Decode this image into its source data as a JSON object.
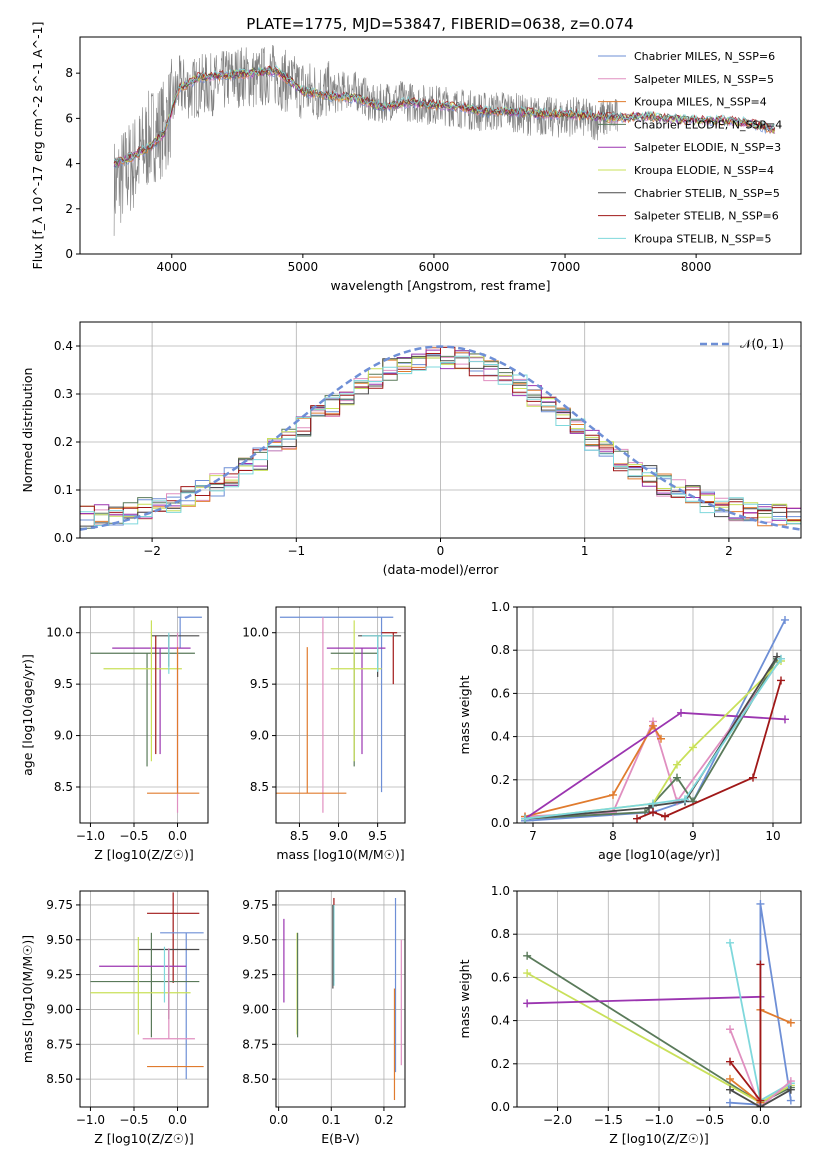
{
  "page": {
    "title": "PLATE=1775, MJD=53847, FIBERID=0638, z=0.074"
  },
  "colors": {
    "blue": "#6e8fd6",
    "pink": "#e08fc0",
    "orange": "#e07b2e",
    "darkgreen": "#5a7a5a",
    "purple": "#9b35b0",
    "yellowgreen": "#c9e05a",
    "darkgray": "#4a4a4a",
    "darkred": "#a01818",
    "cyan": "#7fd8dc",
    "gray": "#808080"
  },
  "chart_data": [
    {
      "id": "spectrum",
      "type": "line",
      "xlabel": "wavelength [Angstrom, rest frame]",
      "ylabel": "Flux [f_λ 10^-17 erg cm^-2 s^-1 A^-1]",
      "xlim": [
        3300,
        8800
      ],
      "ylim": [
        0,
        9.6
      ],
      "xticks": [
        4000,
        5000,
        6000,
        7000,
        8000
      ],
      "yticks": [
        0,
        2,
        4,
        6,
        8
      ],
      "grid": false,
      "legend_position": "top-right",
      "legend": [
        {
          "label": "Chabrier MILES, N_SSP=6",
          "color": "#6e8fd6"
        },
        {
          "label": "Salpeter MILES, N_SSP=5",
          "color": "#e08fc0"
        },
        {
          "label": "Kroupa MILES, N_SSP=4",
          "color": "#e07b2e"
        },
        {
          "label": "Chabrier ELODIE, N_SSP=4",
          "color": "#5a7a5a"
        },
        {
          "label": "Salpeter ELODIE, N_SSP=3",
          "color": "#9b35b0"
        },
        {
          "label": "Kroupa ELODIE, N_SSP=4",
          "color": "#c9e05a"
        },
        {
          "label": "Chabrier STELIB, N_SSP=5",
          "color": "#4a4a4a"
        },
        {
          "label": "Salpeter STELIB, N_SSP=6",
          "color": "#a01818"
        },
        {
          "label": "Kroupa STELIB, N_SSP=5",
          "color": "#7fd8dc"
        }
      ],
      "data_series": {
        "name": "data",
        "x": [
          3560,
          3650,
          3750,
          3850,
          3950,
          4050,
          4150,
          4250,
          4350,
          4450,
          4550,
          4650,
          4750,
          4850,
          4950,
          5050,
          5150,
          5250,
          5350,
          5450,
          5550,
          5650,
          5750,
          5850,
          5950,
          6050,
          6150,
          6250,
          6350,
          6450,
          6550,
          6650,
          6750,
          6850,
          6950,
          7050,
          7150,
          7250,
          7350,
          7450,
          7550,
          7650,
          7750,
          7850,
          7950,
          8050,
          8150,
          8250,
          8350,
          8450
        ],
        "y": [
          3.0,
          3.6,
          4.3,
          5.3,
          5.6,
          7.4,
          7.3,
          7.5,
          7.5,
          7.8,
          7.9,
          7.7,
          8.0,
          7.7,
          7.4,
          7.2,
          7.2,
          7.1,
          7.3,
          7.1,
          6.5,
          6.8,
          6.8,
          6.7,
          6.6,
          6.6,
          6.5,
          6.4,
          6.3,
          6.3,
          6.4,
          6.2,
          6.1,
          6.1,
          6.0,
          6.1,
          6.0,
          5.9,
          6.1,
          5.9,
          6.0,
          5.9,
          5.8,
          5.5,
          5.5,
          5.4,
          5.5,
          5.3,
          5.3,
          5.0
        ]
      },
      "model_series": {
        "x": [
          3560,
          3700,
          3850,
          3950,
          4050,
          4200,
          4400,
          4600,
          4800,
          5000,
          5200,
          5400,
          5600,
          5800,
          6000,
          6200,
          6400,
          6600,
          6800,
          7000,
          7200,
          7400,
          7600,
          7800,
          8000,
          8200,
          8400,
          8600
        ],
        "y": [
          4.0,
          4.3,
          4.8,
          5.4,
          7.3,
          7.8,
          7.9,
          8.0,
          8.1,
          7.2,
          7.0,
          6.9,
          6.5,
          6.7,
          6.6,
          6.5,
          6.3,
          6.3,
          6.2,
          6.2,
          6.1,
          6.0,
          6.1,
          6.0,
          5.9,
          5.9,
          5.8,
          5.5
        ]
      }
    },
    {
      "id": "residuals",
      "type": "line",
      "xlabel": "(data-model)/error",
      "ylabel": "Normed distribution",
      "xlim": [
        -2.5,
        2.5
      ],
      "ylim": [
        0,
        0.45
      ],
      "xticks": [
        -2,
        -1,
        0,
        1,
        2
      ],
      "yticks": [
        0.0,
        0.1,
        0.2,
        0.3,
        0.4
      ],
      "grid": true,
      "legend_position": "top-right",
      "legend_label": "𝒩(0, 1)",
      "note": "step histograms per model plus dashed standard normal"
    },
    {
      "id": "age-vs-Z",
      "type": "scatter",
      "xlabel": "Z [log10(Z/Z☉)]",
      "ylabel": "age [log10(age/yr)]",
      "xlim": [
        -1.12,
        0.35
      ],
      "ylim": [
        8.15,
        10.25
      ],
      "xticks": [
        -1.0,
        -0.5,
        0.0
      ],
      "yticks": [
        8.5,
        9.0,
        9.5,
        10.0
      ],
      "grid": true,
      "errorbars": [
        {
          "color": "#6e8fd6",
          "x": 0.03,
          "xerr": [
            0.03,
            0.25
          ],
          "y": 10.15,
          "yerr": [
            0.3,
            0.0
          ]
        },
        {
          "color": "#4a4a4a",
          "x": -0.1,
          "xerr": [
            0.2,
            0.35
          ],
          "y": 9.97,
          "yerr": [
            0.3,
            0.0
          ]
        },
        {
          "color": "#5a7a5a",
          "x": -0.35,
          "xerr": [
            0.65,
            0.55
          ],
          "y": 9.8,
          "yerr": [
            1.1,
            0.0
          ]
        },
        {
          "color": "#9b35b0",
          "x": -0.2,
          "xerr": [
            0.55,
            0.35
          ],
          "y": 9.85,
          "yerr": [
            1.03,
            0.0
          ]
        },
        {
          "color": "#c9e05a",
          "x": -0.3,
          "xerr": [
            0.55,
            0.35
          ],
          "y": 9.65,
          "yerr": [
            0.9,
            0.47
          ]
        },
        {
          "color": "#e08fc0",
          "x": 0.0,
          "xerr": [
            0.0,
            0.0
          ],
          "y": 9.6,
          "yerr": [
            1.35,
            0.4
          ]
        },
        {
          "color": "#e07b2e",
          "x": 0.0,
          "xerr": [
            0.35,
            0.25
          ],
          "y": 8.44,
          "yerr": [
            0.0,
            1.42
          ]
        },
        {
          "color": "#a01818",
          "x": -0.25,
          "xerr": [
            0.0,
            0.0
          ],
          "y": 9.5,
          "yerr": [
            0.68,
            0.47
          ]
        },
        {
          "color": "#7fd8dc",
          "x": -0.1,
          "xerr": [
            0.0,
            0.0
          ],
          "y": 9.9,
          "yerr": [
            0.3,
            0.1
          ]
        }
      ]
    },
    {
      "id": "age-vs-mass",
      "type": "scatter",
      "xlabel": "mass [log10(M/M☉)]",
      "ylabel": "",
      "xlim": [
        8.2,
        9.85
      ],
      "ylim": [
        8.15,
        10.25
      ],
      "xticks": [
        8.5,
        9.0,
        9.5
      ],
      "yticks": [
        8.5,
        9.0,
        9.5,
        10.0
      ],
      "grid": true,
      "errorbars": [
        {
          "color": "#6e8fd6",
          "x": 9.55,
          "xerr": [
            1.3,
            0.15
          ],
          "y": 10.15,
          "yerr": [
            1.7,
            0.0
          ]
        },
        {
          "color": "#4a4a4a",
          "x": 9.5,
          "xerr": [
            0.25,
            0.3
          ],
          "y": 9.97,
          "yerr": [
            0.4,
            0.0
          ]
        },
        {
          "color": "#5a7a5a",
          "x": 9.2,
          "xerr": [
            0.3,
            0.3
          ],
          "y": 9.8,
          "yerr": [
            1.1,
            0.0
          ]
        },
        {
          "color": "#9b35b0",
          "x": 9.3,
          "xerr": [
            0.45,
            0.3
          ],
          "y": 9.85,
          "yerr": [
            1.03,
            0.0
          ]
        },
        {
          "color": "#c9e05a",
          "x": 9.2,
          "xerr": [
            0.3,
            0.35
          ],
          "y": 9.65,
          "yerr": [
            0.9,
            0.47
          ]
        },
        {
          "color": "#e08fc0",
          "x": 8.8,
          "xerr": [
            0.0,
            0.0
          ],
          "y": 9.6,
          "yerr": [
            1.35,
            0.55
          ]
        },
        {
          "color": "#e07b2e",
          "x": 8.6,
          "xerr": [
            0.4,
            0.5
          ],
          "y": 8.44,
          "yerr": [
            0.0,
            1.42
          ]
        },
        {
          "color": "#a01818",
          "x": 9.7,
          "xerr": [
            0.15,
            0.05
          ],
          "y": 10.0,
          "yerr": [
            0.5,
            0.0
          ]
        },
        {
          "color": "#7fd8dc",
          "x": 9.5,
          "xerr": [
            0.2,
            0.2
          ],
          "y": 9.97,
          "yerr": [
            0.35,
            0.0
          ]
        }
      ]
    },
    {
      "id": "massweight-vs-age",
      "type": "line",
      "xlabel": "age [log10(age/yr)]",
      "ylabel": "mass weight",
      "xlim": [
        6.8,
        10.35
      ],
      "ylim": [
        0,
        1.0
      ],
      "xticks": [
        7,
        8,
        9,
        10
      ],
      "yticks": [
        0.0,
        0.2,
        0.4,
        0.6,
        0.8,
        1.0
      ],
      "grid": true,
      "series": [
        {
          "color": "#6e8fd6",
          "x": [
            6.9,
            8.5,
            8.9,
            9.0,
            10.15
          ],
          "y": [
            0.01,
            0.05,
            0.1,
            0.1,
            0.94
          ]
        },
        {
          "color": "#e08fc0",
          "x": [
            6.9,
            8.0,
            8.5,
            8.8,
            10.1
          ],
          "y": [
            0.03,
            0.05,
            0.47,
            0.1,
            0.76
          ]
        },
        {
          "color": "#e07b2e",
          "x": [
            6.9,
            8.0,
            8.5,
            8.6
          ],
          "y": [
            0.03,
            0.13,
            0.45,
            0.39
          ]
        },
        {
          "color": "#5a7a5a",
          "x": [
            6.9,
            8.4,
            8.8,
            9.0,
            10.05
          ],
          "y": [
            0.02,
            0.05,
            0.21,
            0.1,
            0.76
          ]
        },
        {
          "color": "#9b35b0",
          "x": [
            6.9,
            8.85,
            10.15
          ],
          "y": [
            0.02,
            0.51,
            0.48
          ]
        },
        {
          "color": "#c9e05a",
          "x": [
            6.9,
            8.5,
            8.8,
            9.0,
            10.1
          ],
          "y": [
            0.02,
            0.09,
            0.27,
            0.35,
            0.75
          ]
        },
        {
          "color": "#4a4a4a",
          "x": [
            6.9,
            8.45,
            8.5,
            8.9,
            10.05
          ],
          "y": [
            0.02,
            0.07,
            0.08,
            0.1,
            0.77
          ]
        },
        {
          "color": "#a01818",
          "x": [
            8.3,
            8.5,
            8.65,
            9.75,
            10.1
          ],
          "y": [
            0.02,
            0.05,
            0.03,
            0.21,
            0.66
          ]
        },
        {
          "color": "#7fd8dc",
          "x": [
            6.9,
            8.5,
            8.9,
            10.1
          ],
          "y": [
            0.02,
            0.09,
            0.11,
            0.76
          ]
        }
      ]
    },
    {
      "id": "mass-vs-Z",
      "type": "scatter",
      "xlabel": "Z [log10(Z/Z☉)]",
      "ylabel": "mass [log10(M/M☉)]",
      "xlim": [
        -1.12,
        0.35
      ],
      "ylim": [
        8.3,
        9.85
      ],
      "xticks": [
        -1.0,
        -0.5,
        0.0
      ],
      "yticks": [
        8.5,
        8.75,
        9.0,
        9.25,
        9.5,
        9.75
      ],
      "grid": true,
      "errorbars": [
        {
          "color": "#a01818",
          "x": -0.05,
          "xerr": [
            0.3,
            0.3
          ],
          "y": 9.69,
          "yerr": [
            0.5,
            0.15
          ]
        },
        {
          "color": "#6e8fd6",
          "x": 0.1,
          "xerr": [
            0.3,
            0.2
          ],
          "y": 9.55,
          "yerr": [
            1.05,
            0.0
          ]
        },
        {
          "color": "#4a4a4a",
          "x": -0.1,
          "xerr": [
            0.35,
            0.35
          ],
          "y": 9.43,
          "yerr": [
            0.5,
            0.0
          ]
        },
        {
          "color": "#5a7a5a",
          "x": -0.3,
          "xerr": [
            0.7,
            0.55
          ],
          "y": 9.2,
          "yerr": [
            0.4,
            0.35
          ]
        },
        {
          "color": "#9b35b0",
          "x": -0.35,
          "xerr": [
            0.55,
            0.45
          ],
          "y": 9.31,
          "yerr": [
            0.0,
            0.0
          ]
        },
        {
          "color": "#c9e05a",
          "x": -0.45,
          "xerr": [
            0.55,
            0.6
          ],
          "y": 9.12,
          "yerr": [
            0.3,
            0.4
          ]
        },
        {
          "color": "#e08fc0",
          "x": -0.1,
          "xerr": [
            0.3,
            0.3
          ],
          "y": 8.79,
          "yerr": [
            0.0,
            0.65
          ]
        },
        {
          "color": "#e07b2e",
          "x": 0.0,
          "xerr": [
            0.35,
            0.3
          ],
          "y": 8.59,
          "yerr": [
            0.0,
            0.0
          ]
        },
        {
          "color": "#7fd8dc",
          "x": -0.15,
          "xerr": [
            0.0,
            0.0
          ],
          "y": 9.45,
          "yerr": [
            0.4,
            0.0
          ]
        }
      ]
    },
    {
      "id": "mass-vs-EBV",
      "type": "scatter",
      "xlabel": "E(B-V)",
      "ylabel": "",
      "xlim": [
        -0.005,
        0.24
      ],
      "ylim": [
        8.3,
        9.85
      ],
      "xticks": [
        0.0,
        0.1,
        0.2
      ],
      "yticks": [
        8.5,
        8.75,
        9.0,
        9.25,
        9.5,
        9.75
      ],
      "grid": true,
      "errorbars": [
        {
          "color": "#9b35b0",
          "x": 0.01,
          "y": 9.35,
          "yerr": [
            0.3,
            0.3
          ]
        },
        {
          "color": "#c9e05a",
          "x": 0.035,
          "y": 9.2,
          "yerr": [
            0.38,
            0.35
          ]
        },
        {
          "color": "#5a7a5a",
          "x": 0.036,
          "y": 9.2,
          "yerr": [
            0.4,
            0.35
          ]
        },
        {
          "color": "#a01818",
          "x": 0.105,
          "y": 9.5,
          "yerr": [
            0.3,
            0.3
          ]
        },
        {
          "color": "#7fd8dc",
          "x": 0.105,
          "y": 9.45,
          "yerr": [
            0.28,
            0.3
          ]
        },
        {
          "color": "#4a4a4a",
          "x": 0.103,
          "y": 9.45,
          "yerr": [
            0.3,
            0.3
          ]
        },
        {
          "color": "#6e8fd6",
          "x": 0.222,
          "y": 9.2,
          "yerr": [
            0.65,
            0.6
          ]
        },
        {
          "color": "#e07b2e",
          "x": 0.22,
          "y": 8.75,
          "yerr": [
            0.4,
            0.4
          ]
        },
        {
          "color": "#e08fc0",
          "x": 0.233,
          "y": 9.05,
          "yerr": [
            0.45,
            0.45
          ]
        }
      ]
    },
    {
      "id": "massweight-vs-Z",
      "type": "line",
      "xlabel": "Z [log10(Z/Z☉)]",
      "ylabel": "mass weight",
      "xlim": [
        -2.4,
        0.4
      ],
      "ylim": [
        0,
        1.0
      ],
      "xticks": [
        -2.0,
        -1.5,
        -1.0,
        -0.5,
        0.0
      ],
      "yticks": [
        0.0,
        0.2,
        0.4,
        0.6,
        0.8,
        1.0
      ],
      "grid": true,
      "series": [
        {
          "color": "#5a7a5a",
          "x": [
            -2.3,
            0.0,
            0.3
          ],
          "y": [
            0.7,
            0.02,
            0.09
          ]
        },
        {
          "color": "#c9e05a",
          "x": [
            -2.3,
            0.0,
            0.3
          ],
          "y": [
            0.62,
            0.02,
            0.1
          ]
        },
        {
          "color": "#9b35b0",
          "x": [
            -2.3,
            0.0
          ],
          "y": [
            0.48,
            0.51
          ]
        },
        {
          "color": "#6e8fd6",
          "x": [
            -0.3,
            0.0,
            0.0,
            0.3
          ],
          "y": [
            0.02,
            0.01,
            0.94,
            0.03
          ]
        },
        {
          "color": "#7fd8dc",
          "x": [
            -0.3,
            0.0,
            0.3
          ],
          "y": [
            0.76,
            0.03,
            0.11
          ]
        },
        {
          "color": "#e08fc0",
          "x": [
            -0.3,
            0.0,
            0.3
          ],
          "y": [
            0.36,
            0.0,
            0.12
          ]
        },
        {
          "color": "#e07b2e",
          "x": [
            -0.3,
            0.0,
            0.0,
            0.3
          ],
          "y": [
            0.13,
            0.02,
            0.45,
            0.39
          ]
        },
        {
          "color": "#a01818",
          "x": [
            -0.3,
            0.0,
            0.0
          ],
          "y": [
            0.21,
            0.03,
            0.66
          ]
        },
        {
          "color": "#4a4a4a",
          "x": [
            -0.3,
            0.0,
            0.3
          ],
          "y": [
            0.08,
            0.0,
            0.08
          ]
        }
      ]
    }
  ]
}
